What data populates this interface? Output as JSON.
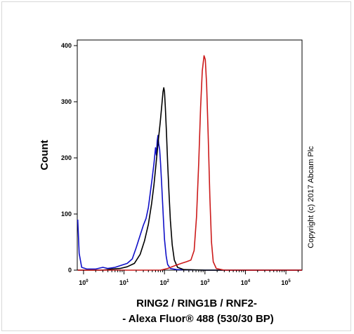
{
  "chart_data": {
    "type": "line",
    "title": "",
    "ylabel": "Count",
    "xlabel_line1": "RING2 / RING1B / RNF2-",
    "xlabel_line2": "- Alexa Fluor® 488 (530/30 BP)",
    "x_scale": "log",
    "xlim": [
      0.7,
      250000
    ],
    "ylim": [
      0,
      410
    ],
    "yticks": [
      0,
      100,
      200,
      300,
      400
    ],
    "xticks": [
      {
        "base": "10",
        "exp": "0",
        "value": 1
      },
      {
        "base": "10",
        "exp": "1",
        "value": 10
      },
      {
        "base": "10",
        "exp": "2",
        "value": 100
      },
      {
        "base": "10",
        "exp": "3",
        "value": 1000
      },
      {
        "base": "10",
        "exp": "4",
        "value": 10000
      },
      {
        "base": "10",
        "exp": "5",
        "value": 100000
      }
    ],
    "grid": false,
    "annotation": "Copyright (c) 2017 Abcam Plc",
    "series": [
      {
        "color": "#1010c8",
        "points": [
          [
            0.72,
            90
          ],
          [
            0.78,
            30
          ],
          [
            0.9,
            5
          ],
          [
            1.2,
            2
          ],
          [
            2,
            2
          ],
          [
            3,
            5
          ],
          [
            4,
            3
          ],
          [
            6,
            5
          ],
          [
            8,
            8
          ],
          [
            12,
            12
          ],
          [
            16,
            20
          ],
          [
            20,
            40
          ],
          [
            25,
            62
          ],
          [
            30,
            80
          ],
          [
            35,
            92
          ],
          [
            40,
            112
          ],
          [
            45,
            140
          ],
          [
            50,
            165
          ],
          [
            55,
            190
          ],
          [
            60,
            218
          ],
          [
            63,
            205
          ],
          [
            66,
            230
          ],
          [
            69,
            240
          ],
          [
            72,
            225
          ],
          [
            76,
            215
          ],
          [
            80,
            190
          ],
          [
            85,
            155
          ],
          [
            90,
            120
          ],
          [
            95,
            85
          ],
          [
            100,
            55
          ],
          [
            110,
            25
          ],
          [
            120,
            10
          ],
          [
            140,
            3
          ],
          [
            200,
            1
          ],
          [
            1000,
            0
          ],
          [
            250000,
            0
          ]
        ]
      },
      {
        "color": "#000000",
        "points": [
          [
            0.72,
            0
          ],
          [
            3,
            0
          ],
          [
            5,
            2
          ],
          [
            8,
            3
          ],
          [
            12,
            6
          ],
          [
            18,
            12
          ],
          [
            25,
            28
          ],
          [
            32,
            52
          ],
          [
            40,
            82
          ],
          [
            48,
            118
          ],
          [
            55,
            152
          ],
          [
            62,
            190
          ],
          [
            70,
            230
          ],
          [
            78,
            262
          ],
          [
            85,
            290
          ],
          [
            92,
            318
          ],
          [
            96,
            325
          ],
          [
            100,
            318
          ],
          [
            105,
            290
          ],
          [
            112,
            245
          ],
          [
            120,
            190
          ],
          [
            130,
            135
          ],
          [
            140,
            88
          ],
          [
            155,
            45
          ],
          [
            175,
            18
          ],
          [
            210,
            5
          ],
          [
            300,
            1
          ],
          [
            1000,
            0
          ],
          [
            250000,
            0
          ]
        ]
      },
      {
        "color": "#cc1a1a",
        "points": [
          [
            0.72,
            0
          ],
          [
            80,
            0
          ],
          [
            120,
            3
          ],
          [
            180,
            8
          ],
          [
            260,
            12
          ],
          [
            350,
            15
          ],
          [
            450,
            18
          ],
          [
            540,
            35
          ],
          [
            620,
            95
          ],
          [
            700,
            190
          ],
          [
            780,
            290
          ],
          [
            860,
            355
          ],
          [
            950,
            382
          ],
          [
            1020,
            375
          ],
          [
            1100,
            330
          ],
          [
            1200,
            240
          ],
          [
            1320,
            130
          ],
          [
            1450,
            50
          ],
          [
            1600,
            15
          ],
          [
            1900,
            3
          ],
          [
            3000,
            0
          ],
          [
            250000,
            0
          ]
        ]
      }
    ]
  }
}
